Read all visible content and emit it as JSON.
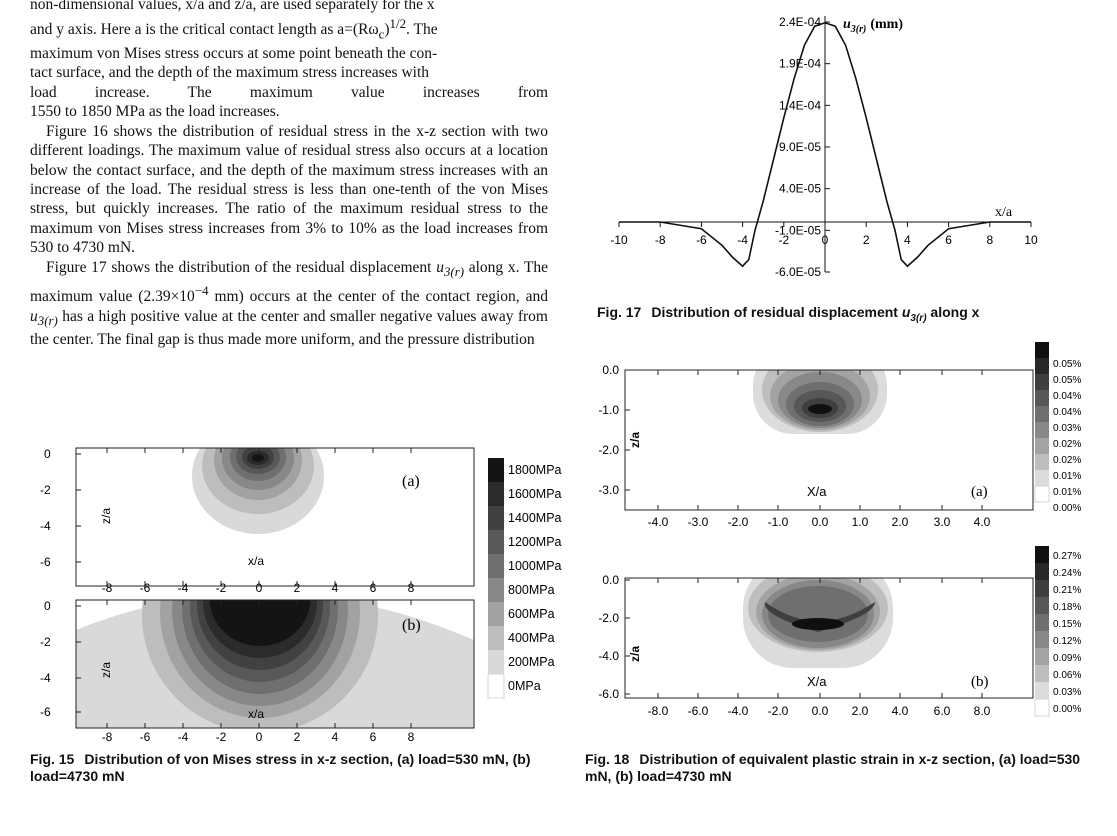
{
  "text": {
    "p1": [
      "non-dimensional values, x/a and z/a, are used separately for the x",
      "and y axis. Here a is the critical contact length as a=(Rω",
      "c",
      ")",
      "1/2",
      ". The",
      "maximum von Mises stress occurs at some point beneath the con-",
      "tact surface, and the depth of the maximum stress increases with",
      "load increase. The maximum value increases from",
      "1550 to 1850 MPa as the load increases."
    ],
    "p2": "Figure 16 shows the distribution of residual stress in the x-z section with two different loadings. The maximum value of residual stress also occurs at a location below the contact surface, and the depth of the maximum stress increases with an increase of the load. The residual stress is less than one-tenth of the von Mises stress, but quickly increases. The ratio of the maximum residual stress to the maximum von Mises stress increases from 3% to 10% as the load increases from 530 to 4730 mN.",
    "p3a": "Figure 17 shows the distribution of the residual displacement",
    "p3_u": "u",
    "p3_sub": "3(r)",
    "p3b": " along x. The maximum value (2.39×10",
    "p3_exp": "−4",
    "p3c": " mm) occurs at the center of the contact region, and ",
    "p3d": " has a high positive value at the center and smaller negative values away from the center. The final gap is thus made more uniform, and the pressure distribution"
  },
  "fig15": {
    "caption_label": "Fig. 15",
    "caption_text": "Distribution of von Mises stress in x-z section, (a) load=530 mN, (b) load=4730 mN",
    "panel_a_label": "(a)",
    "panel_b_label": "(b)",
    "y_ticks_a": [
      "0",
      "-2",
      "-4",
      "-6"
    ],
    "y_ticks_b": [
      "0",
      "-2",
      "-4",
      "-6"
    ],
    "x_ticks": [
      "-8",
      "-6",
      "-4",
      "-2",
      "0",
      "2",
      "4",
      "6",
      "8"
    ],
    "ylabel": "z/a",
    "xlabel": "x/a",
    "legend": [
      "1800MPa",
      "1600MPa",
      "1400MPa",
      "1200MPa",
      "1000MPa",
      "800MPa",
      "600MPa",
      "400MPa",
      "200MPa",
      "0MPa"
    ],
    "legend_colors": [
      "#141414",
      "#2b2b2b",
      "#414141",
      "#585858",
      "#6f6f6f",
      "#888888",
      "#a2a2a2",
      "#bdbdbd",
      "#d9d9d9",
      "#ffffff"
    ]
  },
  "fig17": {
    "caption_label": "Fig. 17",
    "caption_text": "Distribution of residual displacement u3(r) along x",
    "caption_text_pre": "Distribution of residual displacement ",
    "caption_u": "u",
    "caption_sub": "3(r)",
    "caption_text_post": " along x",
    "ylabel_u": "u",
    "ylabel_sub": "3(r)",
    "ylabel_unit": "(mm)",
    "xlabel": "x/a",
    "y_ticks": [
      "2.4E-04",
      "1.9E-04",
      "1.4E-04",
      "9.0E-05",
      "4.0E-05",
      "-1.0E-05",
      "-6.0E-05"
    ],
    "x_ticks": [
      "-10",
      "-8",
      "-6",
      "-4",
      "-2",
      "0",
      "2",
      "4",
      "6",
      "8",
      "10"
    ]
  },
  "fig18": {
    "caption_label": "Fig. 18",
    "caption_text": "Distribution of equivalent plastic strain in x-z section, (a) load=530 mN, (b) load=4730 mN",
    "panel_a_label": "(a)",
    "panel_b_label": "(b)",
    "ylabel": "z/a",
    "xlabel": "X/a",
    "a_y_ticks": [
      "0.0",
      "-1.0",
      "-2.0",
      "-3.0"
    ],
    "a_x_ticks": [
      "-4.0",
      "-3.0",
      "-2.0",
      "-1.0",
      "0.0",
      "1.0",
      "2.0",
      "3.0",
      "4.0"
    ],
    "b_y_ticks": [
      "0.0",
      "-2.0",
      "-4.0",
      "-6.0"
    ],
    "b_x_ticks": [
      "-8.0",
      "-6.0",
      "-4.0",
      "-2.0",
      "0.0",
      "2.0",
      "4.0",
      "6.0",
      "8.0"
    ],
    "legend_a": [
      "0.05%",
      "0.05%",
      "0.04%",
      "0.04%",
      "0.03%",
      "0.02%",
      "0.02%",
      "0.01%",
      "0.01%",
      "0.00%"
    ],
    "legend_b": [
      "0.27%",
      "0.24%",
      "0.21%",
      "0.18%",
      "0.15%",
      "0.12%",
      "0.09%",
      "0.06%",
      "0.03%",
      "0.00%"
    ],
    "legend_colors": [
      "#101010",
      "#282828",
      "#3f3f3f",
      "#575757",
      "#6f6f6f",
      "#888888",
      "#a3a3a3",
      "#bebebe",
      "#dcdcdc",
      "#ffffff"
    ]
  },
  "chart_data": [
    {
      "type": "line",
      "title": "",
      "xlabel": "x/a",
      "ylabel": "u3(r) (mm)",
      "xlim": [
        -10,
        10
      ],
      "ylim": [
        -6e-05,
        0.00024
      ],
      "series": [
        {
          "x": [
            -10,
            -8,
            -6,
            -5,
            -4.5,
            -4,
            -3.7,
            -3.4,
            -3,
            -2.5,
            -2,
            -1.5,
            -1,
            -0.5,
            0,
            0.5,
            1,
            1.5,
            2,
            2.5,
            3,
            3.4,
            3.7,
            4,
            4.5,
            5,
            6,
            8,
            10
          ],
          "y": [
            0,
            0,
            -8e-06,
            -2.8e-05,
            -4.2e-05,
            -5.3e-05,
            -4.5e-05,
            -1e-05,
            2.5e-05,
            7.5e-05,
            0.000125,
            0.000172,
            0.000212,
            0.000235,
            0.000239,
            0.000235,
            0.000212,
            0.000172,
            0.000125,
            7.5e-05,
            2.5e-05,
            -1e-05,
            -4.5e-05,
            -5.3e-05,
            -4.2e-05,
            -2.8e-05,
            -8e-06,
            0,
            0
          ]
        }
      ]
    }
  ]
}
